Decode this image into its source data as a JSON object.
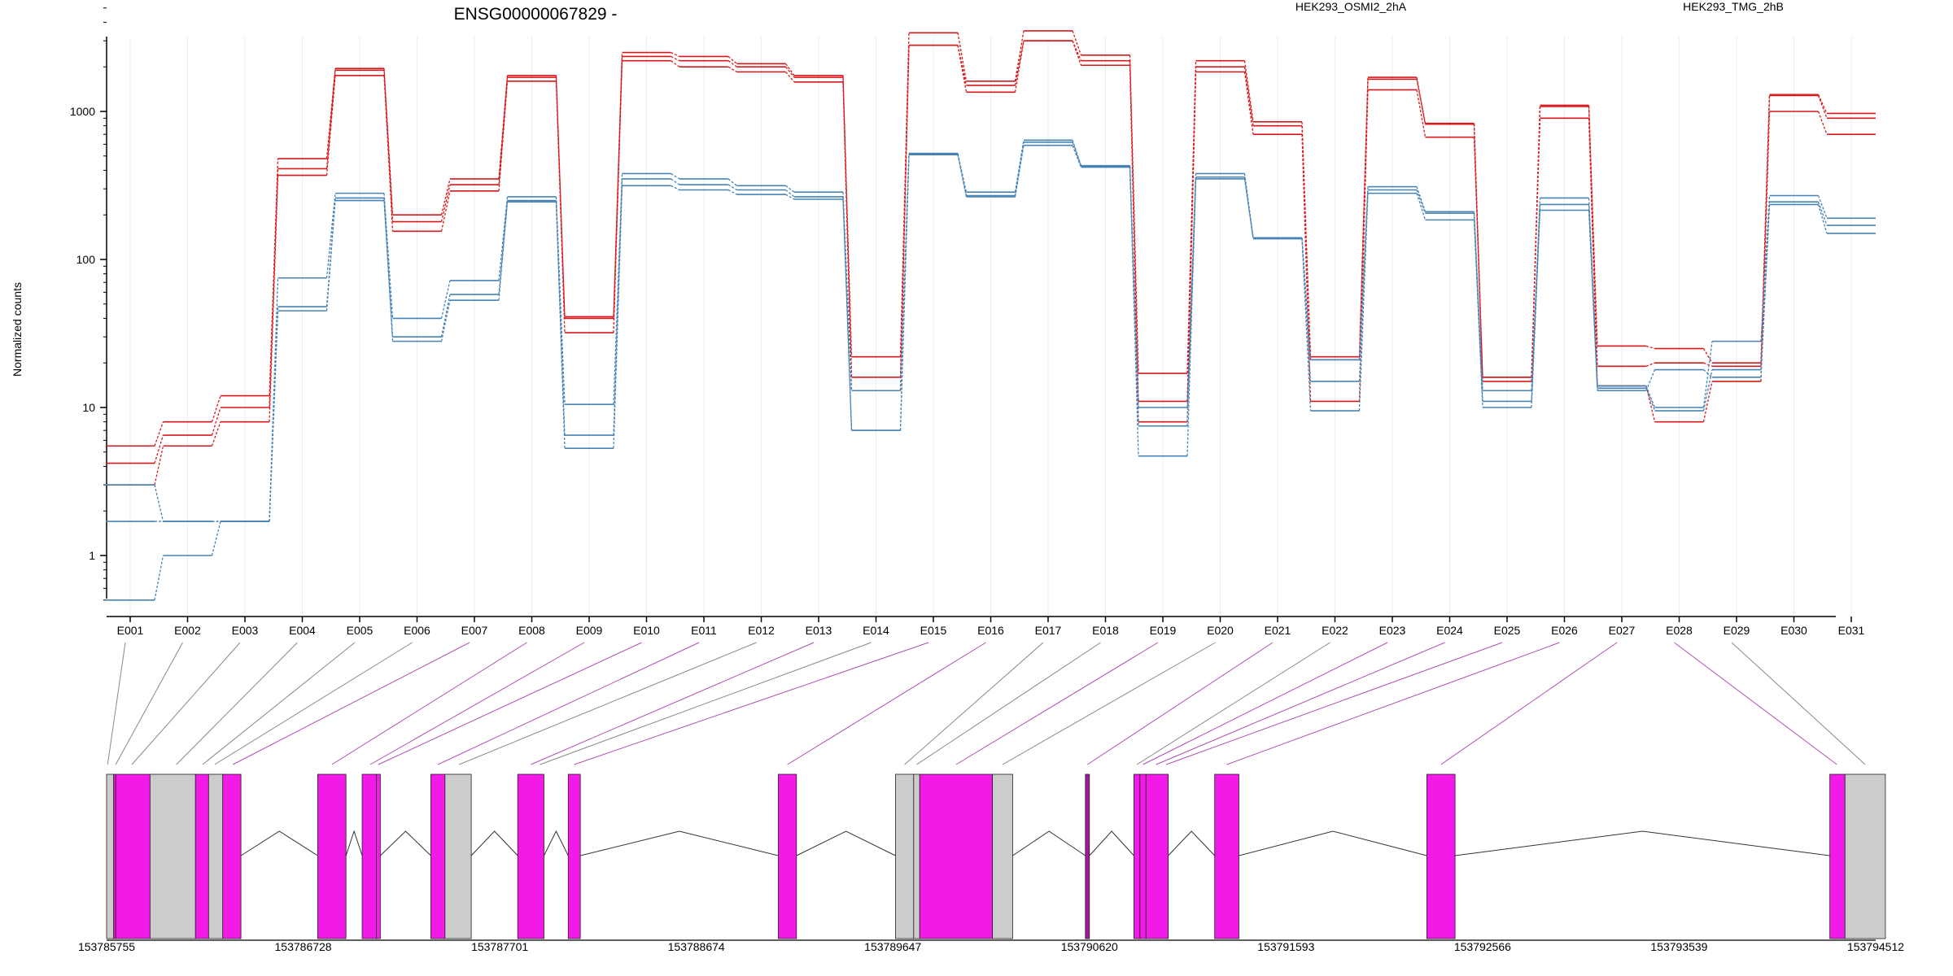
{
  "chart_data": {
    "type": "line",
    "title": "ENSG00000067829 -",
    "ylabel": "Normalized counts",
    "xlabel": "",
    "yscale": "log",
    "ylim": [
      0.5,
      5000
    ],
    "yticks": [
      1,
      10,
      100,
      1000
    ],
    "ytick_labels": [
      "1",
      "10",
      "100",
      "1000"
    ],
    "grid": "vertical",
    "legend_placement": "top",
    "categories": [
      "E001",
      "E002",
      "E003",
      "E004",
      "E005",
      "E006",
      "E007",
      "E008",
      "E009",
      "E010",
      "E011",
      "E012",
      "E013",
      "E014",
      "E015",
      "E016",
      "E017",
      "E018",
      "E019",
      "E020",
      "E021",
      "E022",
      "E023",
      "E024",
      "E025",
      "E026",
      "E027",
      "E028",
      "E029",
      "E030",
      "E031"
    ],
    "series": [
      {
        "name": "HEK293_OSMI2_2hA",
        "color": "#d7191c",
        "replicate": 1,
        "values": [
          5.5,
          8,
          12,
          480,
          1950,
          200,
          350,
          1750,
          41,
          2500,
          2350,
          2100,
          1750,
          22,
          3400,
          1600,
          3500,
          2400,
          17,
          2200,
          850,
          22,
          1700,
          830,
          16,
          1100,
          26,
          25,
          20,
          1300,
          970
        ]
      },
      {
        "name": "HEK293_OSMI2_2hA",
        "color": "#d7191c",
        "replicate": 2,
        "values": [
          4.2,
          6.5,
          10,
          410,
          1900,
          180,
          320,
          1700,
          40,
          2350,
          2200,
          2000,
          1700,
          16,
          2800,
          1500,
          3000,
          2200,
          11,
          2000,
          800,
          21,
          1650,
          820,
          15,
          1080,
          19,
          20,
          19,
          1280,
          900
        ]
      },
      {
        "name": "HEK293_OSMI2_2hA",
        "color": "#d7191c",
        "replicate": 3,
        "values": [
          3,
          5.5,
          8,
          370,
          1750,
          155,
          290,
          1600,
          32,
          2200,
          2000,
          1850,
          1580,
          13,
          2800,
          1350,
          3000,
          2050,
          8,
          1850,
          700,
          11,
          1400,
          670,
          16,
          900,
          14,
          8,
          15,
          1000,
          700
        ]
      },
      {
        "name": "HEK293_TMG_2hB",
        "color": "#4682b4",
        "replicate": 1,
        "values": [
          3,
          1.7,
          1.7,
          75,
          280,
          40,
          72,
          265,
          10.5,
          380,
          350,
          315,
          285,
          13,
          520,
          285,
          640,
          430,
          10,
          380,
          140,
          21,
          310,
          210,
          13,
          260,
          14,
          10,
          28,
          270,
          190
        ]
      },
      {
        "name": "HEK293_TMG_2hB",
        "color": "#4682b4",
        "replicate": 2,
        "values": [
          1.7,
          1.7,
          1.7,
          48,
          260,
          30,
          58,
          250,
          6.5,
          350,
          320,
          295,
          265,
          7,
          520,
          270,
          620,
          425,
          7.5,
          360,
          140,
          15,
          295,
          205,
          11,
          235,
          13.5,
          9.5,
          18,
          245,
          170
        ]
      },
      {
        "name": "HEK293_TMG_2hB",
        "color": "#4682b4",
        "replicate": 3,
        "values": [
          0.5,
          1,
          1.7,
          45,
          250,
          28,
          53,
          245,
          5.3,
          315,
          295,
          275,
          255,
          7,
          510,
          265,
          590,
          420,
          4.7,
          350,
          138,
          9.5,
          280,
          185,
          10,
          215,
          13,
          18,
          16,
          235,
          150
        ]
      }
    ],
    "legend": [
      {
        "label": "HEK293_OSMI2_2hA",
        "color": "#d7191c"
      },
      {
        "label": "HEK293_TMG_2hB",
        "color": "#4682b4"
      }
    ],
    "genomic_axis": {
      "ticks": [
        153785755,
        153786728,
        153787701,
        153788674,
        153789647,
        153790620,
        153791593,
        153792566,
        153793539,
        153794512
      ],
      "tick_labels": [
        "153785755",
        "153786728",
        "153787701",
        "153788674",
        "153789647",
        "153790620",
        "153791593",
        "153792566",
        "153793539",
        "153794512"
      ],
      "range": [
        153785755,
        153794512
      ]
    },
    "exon_segments": [
      {
        "start": 153785755,
        "end": 153785790,
        "color": "#cccccc"
      },
      {
        "start": 153785790,
        "end": 153785800,
        "color": "#f21ae6"
      },
      {
        "start": 153785800,
        "end": 153785970,
        "color": "#f21ae6"
      },
      {
        "start": 153785970,
        "end": 153786195,
        "color": "#cccccc"
      },
      {
        "start": 153786195,
        "end": 153786260,
        "color": "#f21ae6"
      },
      {
        "start": 153786260,
        "end": 153786330,
        "color": "#cccccc"
      },
      {
        "start": 153786330,
        "end": 153786420,
        "color": "#f21ae6"
      },
      {
        "start": 153786800,
        "end": 153786940,
        "color": "#f21ae6"
      },
      {
        "start": 153787020,
        "end": 153787090,
        "color": "#f21ae6"
      },
      {
        "start": 153787090,
        "end": 153787110,
        "color": "#f21ae6"
      },
      {
        "start": 153787360,
        "end": 153787430,
        "color": "#f21ae6"
      },
      {
        "start": 153787430,
        "end": 153787560,
        "color": "#cccccc"
      },
      {
        "start": 153787790,
        "end": 153787920,
        "color": "#f21ae6"
      },
      {
        "start": 153788040,
        "end": 153788100,
        "color": "#f21ae6"
      },
      {
        "start": 153789080,
        "end": 153789170,
        "color": "#f21ae6"
      },
      {
        "start": 153789660,
        "end": 153789750,
        "color": "#cccccc"
      },
      {
        "start": 153789750,
        "end": 153789780,
        "color": "#cccccc"
      },
      {
        "start": 153789780,
        "end": 153790140,
        "color": "#f21ae6"
      },
      {
        "start": 153790140,
        "end": 153790240,
        "color": "#cccccc"
      },
      {
        "start": 153790600,
        "end": 153790620,
        "color": "#a01aa0"
      },
      {
        "start": 153790840,
        "end": 153790870,
        "color": "#f21ae6"
      },
      {
        "start": 153790870,
        "end": 153790900,
        "color": "#f21ae6"
      },
      {
        "start": 153790900,
        "end": 153791010,
        "color": "#f21ae6"
      },
      {
        "start": 153791240,
        "end": 153791360,
        "color": "#f21ae6"
      },
      {
        "start": 153792290,
        "end": 153792430,
        "color": "#f21ae6"
      },
      {
        "start": 153794285,
        "end": 153794360,
        "color": "#f21ae6"
      },
      {
        "start": 153794360,
        "end": 153794560,
        "color": "#cccccc"
      }
    ],
    "exon_links": [
      {
        "exon": "E001",
        "to": 153785760,
        "color": "#888888"
      },
      {
        "exon": "E002",
        "to": 153785800,
        "color": "#888888"
      },
      {
        "exon": "E003",
        "to": 153785880,
        "color": "#888888"
      },
      {
        "exon": "E004",
        "to": 153786100,
        "color": "#888888"
      },
      {
        "exon": "E005",
        "to": 153786230,
        "color": "#888888"
      },
      {
        "exon": "E006",
        "to": 153786290,
        "color": "#888888"
      },
      {
        "exon": "E007",
        "to": 153786380,
        "color": "#b050b0"
      },
      {
        "exon": "E008",
        "to": 153786870,
        "color": "#b050b0"
      },
      {
        "exon": "E009",
        "to": 153787060,
        "color": "#b050b0"
      },
      {
        "exon": "E010",
        "to": 153787100,
        "color": "#b050b0"
      },
      {
        "exon": "E011",
        "to": 153787395,
        "color": "#b050b0"
      },
      {
        "exon": "E012",
        "to": 153787500,
        "color": "#888888"
      },
      {
        "exon": "E013",
        "to": 153787855,
        "color": "#b050b0"
      },
      {
        "exon": "E014",
        "to": 153787900,
        "color": "#888888"
      },
      {
        "exon": "E015",
        "to": 153788070,
        "color": "#b050b0"
      },
      {
        "exon": "E016",
        "to": 153789125,
        "color": "#b050b0"
      },
      {
        "exon": "E017",
        "to": 153789705,
        "color": "#888888"
      },
      {
        "exon": "E018",
        "to": 153789765,
        "color": "#888888"
      },
      {
        "exon": "E019",
        "to": 153789960,
        "color": "#b050b0"
      },
      {
        "exon": "E020",
        "to": 153790190,
        "color": "#888888"
      },
      {
        "exon": "E021",
        "to": 153790610,
        "color": "#b050b0"
      },
      {
        "exon": "E022",
        "to": 153790855,
        "color": "#888888"
      },
      {
        "exon": "E023",
        "to": 153790885,
        "color": "#b050b0"
      },
      {
        "exon": "E024",
        "to": 153790950,
        "color": "#b050b0"
      },
      {
        "exon": "E025",
        "to": 153791000,
        "color": "#b050b0"
      },
      {
        "exon": "E026",
        "to": 153791300,
        "color": "#b050b0"
      },
      {
        "exon": "E027",
        "to": 153792360,
        "color": "#b050b0"
      },
      {
        "exon": "E028",
        "to": 153794320,
        "color": "#b050b0"
      },
      {
        "exon": "E029",
        "to": 153794460,
        "color": "#888888"
      }
    ],
    "introns": [
      {
        "from": 153786420,
        "to": 153786800
      },
      {
        "from": 153786940,
        "to": 153787020
      },
      {
        "from": 153787110,
        "to": 153787360
      },
      {
        "from": 153787560,
        "to": 153787790
      },
      {
        "from": 153787920,
        "to": 153788040
      },
      {
        "from": 153788100,
        "to": 153789080
      },
      {
        "from": 153789170,
        "to": 153789660
      },
      {
        "from": 153790240,
        "to": 153790600
      },
      {
        "from": 153790620,
        "to": 153790840
      },
      {
        "from": 153791010,
        "to": 153791240
      },
      {
        "from": 153791360,
        "to": 153792290
      },
      {
        "from": 153792430,
        "to": 153794285
      }
    ]
  }
}
